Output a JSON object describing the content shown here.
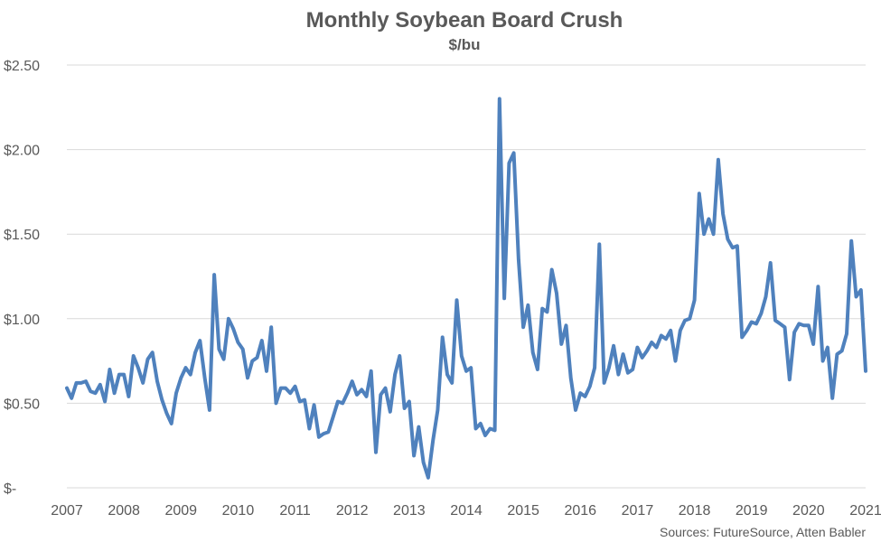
{
  "chart_data": {
    "type": "line",
    "title": "Monthly Soybean Board Crush",
    "subtitle": "$/bu",
    "source": "Sources: FutureSource, Atten Babler",
    "xlim": [
      2007.0,
      2021.0
    ],
    "ylim": [
      0,
      2.5
    ],
    "xticks": [
      {
        "value": 2007,
        "label": "2007"
      },
      {
        "value": 2008,
        "label": "2008"
      },
      {
        "value": 2009,
        "label": "2009"
      },
      {
        "value": 2010,
        "label": "2010"
      },
      {
        "value": 2011,
        "label": "2011"
      },
      {
        "value": 2012,
        "label": "2012"
      },
      {
        "value": 2013,
        "label": "2013"
      },
      {
        "value": 2014,
        "label": "2014"
      },
      {
        "value": 2015,
        "label": "2015"
      },
      {
        "value": 2016,
        "label": "2016"
      },
      {
        "value": 2017,
        "label": "2017"
      },
      {
        "value": 2018,
        "label": "2018"
      },
      {
        "value": 2019,
        "label": "2019"
      },
      {
        "value": 2020,
        "label": "2020"
      },
      {
        "value": 2021,
        "label": "2021"
      }
    ],
    "yticks": [
      {
        "value": 0,
        "label": "$-"
      },
      {
        "value": 0.5,
        "label": "$0.50"
      },
      {
        "value": 1.0,
        "label": "$1.00"
      },
      {
        "value": 1.5,
        "label": "$1.50"
      },
      {
        "value": 2.0,
        "label": "$2.00"
      },
      {
        "value": 2.5,
        "label": "$2.50"
      }
    ],
    "grid": "horizontal",
    "line_color": "#4f81bd",
    "series": [
      {
        "x": [
          2007.0,
          2007.083,
          2007.167,
          2007.25,
          2007.333,
          2007.417,
          2007.5,
          2007.583,
          2007.667,
          2007.75,
          2007.833,
          2007.917,
          2008.0,
          2008.083,
          2008.167,
          2008.25,
          2008.333,
          2008.417,
          2008.5,
          2008.583,
          2008.667,
          2008.75,
          2008.833,
          2008.917,
          2009.0,
          2009.083,
          2009.167,
          2009.25,
          2009.333,
          2009.417,
          2009.5,
          2009.583,
          2009.667,
          2009.75,
          2009.833,
          2009.917,
          2010.0,
          2010.083,
          2010.167,
          2010.25,
          2010.333,
          2010.417,
          2010.5,
          2010.583,
          2010.667,
          2010.75,
          2010.833,
          2010.917,
          2011.0,
          2011.083,
          2011.167,
          2011.25,
          2011.333,
          2011.417,
          2011.5,
          2011.583,
          2011.667,
          2011.75,
          2011.833,
          2011.917,
          2012.0,
          2012.083,
          2012.167,
          2012.25,
          2012.333,
          2012.417,
          2012.5,
          2012.583,
          2012.667,
          2012.75,
          2012.833,
          2012.917,
          2013.0,
          2013.083,
          2013.167,
          2013.25,
          2013.333,
          2013.417,
          2013.5,
          2013.583,
          2013.667,
          2013.75,
          2013.833,
          2013.917,
          2014.0,
          2014.083,
          2014.167,
          2014.25,
          2014.333,
          2014.417,
          2014.5,
          2014.583,
          2014.667,
          2014.75,
          2014.833,
          2014.917,
          2015.0,
          2015.083,
          2015.167,
          2015.25,
          2015.333,
          2015.417,
          2015.5,
          2015.583,
          2015.667,
          2015.75,
          2015.833,
          2015.917,
          2016.0,
          2016.083,
          2016.167,
          2016.25,
          2016.333,
          2016.417,
          2016.5,
          2016.583,
          2016.667,
          2016.75,
          2016.833,
          2016.917,
          2017.0,
          2017.083,
          2017.167,
          2017.25,
          2017.333,
          2017.417,
          2017.5,
          2017.583,
          2017.667,
          2017.75,
          2017.833,
          2017.917,
          2018.0,
          2018.083,
          2018.167,
          2018.25,
          2018.333,
          2018.417,
          2018.5,
          2018.583,
          2018.667,
          2018.75,
          2018.833,
          2018.917,
          2019.0,
          2019.083,
          2019.167,
          2019.25,
          2019.333,
          2019.417,
          2019.5,
          2019.583,
          2019.667,
          2019.75,
          2019.833,
          2019.917,
          2020.0,
          2020.083,
          2020.167,
          2020.25,
          2020.333,
          2020.417,
          2020.5,
          2020.583,
          2020.667,
          2020.75,
          2020.833,
          2020.917,
          2021.0
        ],
        "y": [
          0.59,
          0.53,
          0.62,
          0.62,
          0.63,
          0.57,
          0.56,
          0.61,
          0.51,
          0.7,
          0.56,
          0.67,
          0.67,
          0.54,
          0.78,
          0.71,
          0.62,
          0.76,
          0.8,
          0.63,
          0.52,
          0.44,
          0.38,
          0.56,
          0.65,
          0.71,
          0.67,
          0.8,
          0.87,
          0.65,
          0.46,
          1.26,
          0.82,
          0.76,
          1.0,
          0.94,
          0.86,
          0.82,
          0.65,
          0.75,
          0.77,
          0.87,
          0.69,
          0.95,
          0.5,
          0.59,
          0.59,
          0.56,
          0.6,
          0.51,
          0.52,
          0.35,
          0.49,
          0.3,
          0.32,
          0.33,
          0.42,
          0.51,
          0.5,
          0.56,
          0.63,
          0.55,
          0.58,
          0.54,
          0.69,
          0.21,
          0.55,
          0.59,
          0.45,
          0.67,
          0.78,
          0.47,
          0.51,
          0.19,
          0.36,
          0.15,
          0.06,
          0.28,
          0.46,
          0.89,
          0.67,
          0.62,
          1.11,
          0.78,
          0.69,
          0.71,
          0.35,
          0.38,
          0.31,
          0.35,
          0.34,
          2.3,
          1.12,
          1.92,
          1.98,
          1.35,
          0.95,
          1.08,
          0.8,
          0.7,
          1.06,
          1.04,
          1.29,
          1.15,
          0.85,
          0.96,
          0.65,
          0.46,
          0.56,
          0.54,
          0.6,
          0.71,
          1.44,
          0.62,
          0.71,
          0.84,
          0.67,
          0.79,
          0.68,
          0.7,
          0.83,
          0.77,
          0.81,
          0.86,
          0.83,
          0.9,
          0.88,
          0.93,
          0.75,
          0.93,
          0.99,
          1.0,
          1.11,
          1.74,
          1.5,
          1.59,
          1.5,
          1.94,
          1.62,
          1.47,
          1.42,
          1.43,
          0.89,
          0.93,
          0.98,
          0.97,
          1.03,
          1.13,
          1.33,
          0.99,
          0.97,
          0.95,
          0.64,
          0.92,
          0.97,
          0.96,
          0.96,
          0.85,
          1.19,
          0.75,
          0.83,
          0.53,
          0.79,
          0.81,
          0.91,
          1.46,
          1.13,
          1.17,
          0.69
        ]
      }
    ]
  }
}
